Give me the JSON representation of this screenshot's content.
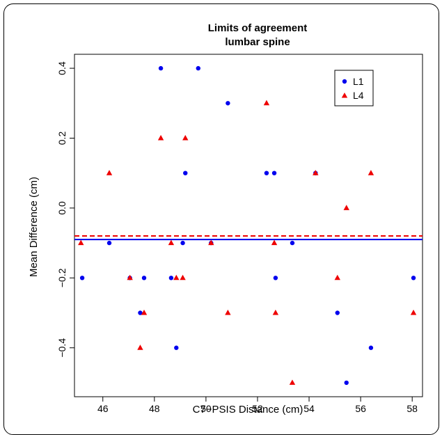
{
  "chart_data": {
    "type": "scatter",
    "title": [
      "Limits of agreement",
      "lumbar spine"
    ],
    "xlabel": "C7−PSIS Distance (cm)",
    "ylabel": "Mean Difference (cm)",
    "xlim": [
      44.9,
      58.4
    ],
    "ylim": [
      -0.54,
      0.44
    ],
    "xticks": [
      46,
      48,
      50,
      52,
      54,
      56,
      58
    ],
    "xtick_labels": [
      "46",
      "48",
      "50",
      "52",
      "54",
      "56",
      "58"
    ],
    "yticks": [
      -0.4,
      -0.2,
      0.0,
      0.2,
      0.4
    ],
    "ytick_labels": [
      "−0.4",
      "−0.2",
      "0.0",
      "0.2",
      "0.4"
    ],
    "legend_position": "top-right",
    "series": [
      {
        "name": "L1",
        "marker": "circle",
        "color": "#0000ee",
        "mean_line": -0.09,
        "mean_line_style": "solid",
        "points": [
          [
            45.2,
            -0.2
          ],
          [
            46.25,
            -0.1
          ],
          [
            47.05,
            -0.2
          ],
          [
            47.45,
            -0.3
          ],
          [
            47.6,
            -0.2
          ],
          [
            48.25,
            0.4
          ],
          [
            48.65,
            -0.2
          ],
          [
            48.85,
            -0.4
          ],
          [
            49.1,
            -0.1
          ],
          [
            49.2,
            0.1
          ],
          [
            49.7,
            0.4
          ],
          [
            50.2,
            -0.1
          ],
          [
            50.85,
            0.3
          ],
          [
            52.35,
            0.1
          ],
          [
            52.65,
            0.1
          ],
          [
            52.7,
            -0.2
          ],
          [
            53.35,
            -0.1
          ],
          [
            54.25,
            0.1
          ],
          [
            55.1,
            -0.3
          ],
          [
            55.45,
            -0.5
          ],
          [
            56.4,
            -0.4
          ],
          [
            58.05,
            -0.2
          ]
        ]
      },
      {
        "name": "L4",
        "marker": "triangle",
        "color": "#ee0000",
        "mean_line": -0.08,
        "mean_line_style": "dashed",
        "points": [
          [
            45.15,
            -0.1
          ],
          [
            46.25,
            0.1
          ],
          [
            47.05,
            -0.2
          ],
          [
            47.45,
            -0.4
          ],
          [
            47.6,
            -0.3
          ],
          [
            48.25,
            0.2
          ],
          [
            48.65,
            -0.1
          ],
          [
            48.85,
            -0.2
          ],
          [
            49.1,
            -0.2
          ],
          [
            49.2,
            0.2
          ],
          [
            50.2,
            -0.1
          ],
          [
            50.85,
            -0.3
          ],
          [
            52.35,
            0.3
          ],
          [
            52.65,
            -0.1
          ],
          [
            52.7,
            -0.3
          ],
          [
            53.35,
            -0.5
          ],
          [
            54.25,
            0.1
          ],
          [
            55.1,
            -0.2
          ],
          [
            55.45,
            0.0
          ],
          [
            56.4,
            0.1
          ],
          [
            58.05,
            -0.3
          ]
        ]
      }
    ]
  }
}
